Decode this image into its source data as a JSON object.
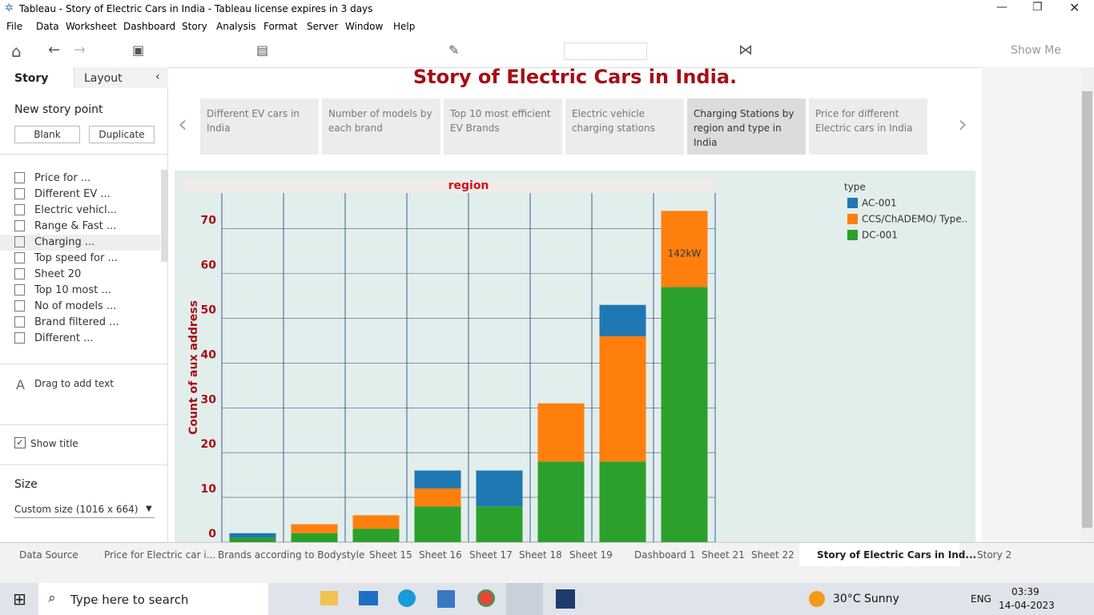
{
  "window_title": "Tableau - Story of Electric Cars in India - Tableau license expires in 3 days",
  "menu": [
    "File",
    "Data",
    "Worksheet",
    "Dashboard",
    "Story",
    "Analysis",
    "Format",
    "Server",
    "Window",
    "Help"
  ],
  "toolbar": {
    "show_me": "Show Me"
  },
  "side_panel": {
    "tabs": [
      "Story",
      "Layout"
    ],
    "new_story_point": "New story point",
    "buttons": [
      "Blank",
      "Duplicate"
    ],
    "sheets": [
      "Price for ...",
      "Different EV ...",
      "Electric vehicl...",
      "Range & Fast ...",
      "Charging ...",
      "Top speed for ...",
      "Sheet 20",
      "Top 10 most ...",
      "No of models ...",
      "Brand filtered ...",
      "Different ..."
    ],
    "drag_text": "Drag to add text",
    "show_title": "Show title",
    "size_label": "Size",
    "size_value": "Custom size (1016 x 664)"
  },
  "story": {
    "title": "Story of Electric Cars in India.",
    "points": [
      "Different EV cars in India",
      "Number of models by each brand",
      "Top 10 most efficient EV Brands",
      "Electric vehicle charging stations",
      "Charging Stations by region and type in India",
      "Price for different Electric cars in India"
    ]
  },
  "chart_data": {
    "type": "stacked-bar",
    "header": "region",
    "y_label": "Count of aux address",
    "legend_title": "type",
    "categories": [
      null,
      null,
      null,
      null,
      null,
      null,
      null,
      null
    ],
    "series": [
      {
        "name": "AC-001",
        "color": "#1f77b4",
        "values": [
          1,
          null,
          null,
          4,
          8,
          null,
          7,
          null
        ]
      },
      {
        "name": "CCS/ChADEMO/ Type..",
        "color": "#ff7f0e",
        "values": [
          null,
          2,
          3,
          4,
          null,
          13,
          28,
          17
        ]
      },
      {
        "name": "DC-001",
        "color": "#2ca02c",
        "values": [
          1,
          2,
          3,
          8,
          8,
          18,
          18,
          57
        ]
      }
    ],
    "annotation": "142kW",
    "ylim": [
      0,
      78
    ],
    "yticks": [
      0,
      10,
      20,
      30,
      40,
      50,
      60,
      70
    ],
    "grid": true
  },
  "tabs": [
    "Data Source",
    "Price for Electric car i...",
    "Brands according to Bodystyle",
    "Sheet 15",
    "Sheet 16",
    "Sheet 17",
    "Sheet 18",
    "Sheet 19",
    "Dashboard 1",
    "Sheet 21",
    "Sheet 22",
    "Story of Electric Cars in Ind...",
    "Story 2"
  ],
  "taskbar": {
    "search": "Type here to search",
    "weather": "30°C  Sunny",
    "language": "ENG",
    "time": "03:39",
    "date": "14-04-2023"
  }
}
